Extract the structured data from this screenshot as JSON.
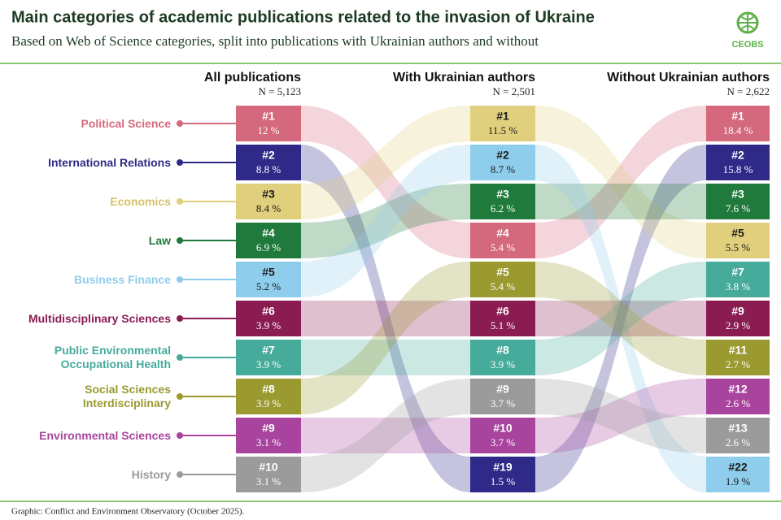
{
  "chart_data": {
    "type": "ribbon",
    "title": "Main categories of academic publications related to the invasion of Ukraine",
    "subtitle": "Based on Web of Science categories, split into publications with Ukrainian authors and without",
    "logo": "CEOBS",
    "source": "Graphic: Conflict and Environment Observatory (October 2025).",
    "categories": [
      "Political Science",
      "International Relations",
      "Economics",
      "Law",
      "Business Finance",
      "Multidisciplinary Sciences",
      "Public Environmental Occupational Health",
      "Social Sciences Interdisciplinary",
      "Environmental Sciences",
      "History"
    ],
    "colors": [
      "#d4687c",
      "#2f2a88",
      "#e0cf7c",
      "#1f7a3b",
      "#8fcdec",
      "#8a1c52",
      "#46ab9a",
      "#9a9a30",
      "#a8449d",
      "#9b9b9b"
    ],
    "columns": [
      {
        "title": "All publications",
        "n_label": "N = 5,123",
        "ranks": [
          1,
          2,
          3,
          4,
          5,
          6,
          7,
          8,
          9,
          10
        ],
        "rank_labels": [
          "#1",
          "#2",
          "#3",
          "#4",
          "#5",
          "#6",
          "#7",
          "#8",
          "#9",
          "#10"
        ],
        "values": [
          12,
          8.8,
          8.4,
          6.9,
          5.2,
          3.9,
          3.9,
          3.9,
          3.1,
          3.1
        ],
        "value_labels": [
          "12 %",
          "8.8 %",
          "8.4 %",
          "6.9 %",
          "5.2 %",
          "3.9 %",
          "3.9 %",
          "3.9 %",
          "3.1 %",
          "3.1 %"
        ]
      },
      {
        "title": "With Ukrainian authors",
        "n_label": "N = 2,501",
        "ranks": [
          4,
          19,
          1,
          3,
          2,
          6,
          8,
          5,
          10,
          9
        ],
        "rank_labels": [
          "#4",
          "#19",
          "#1",
          "#3",
          "#2",
          "#6",
          "#8",
          "#5",
          "#10",
          "#9"
        ],
        "values": [
          5.4,
          1.5,
          11.5,
          6.2,
          8.7,
          5.1,
          3.9,
          5.4,
          3.7,
          3.7
        ],
        "value_labels": [
          "5.4 %",
          "1.5 %",
          "11.5 %",
          "6.2 %",
          "8.7 %",
          "5.1 %",
          "3.9 %",
          "5.4 %",
          "3.7 %",
          "3.7 %"
        ]
      },
      {
        "title": "Without Ukrainian authors",
        "n_label": "N = 2,622",
        "ranks": [
          1,
          2,
          5,
          3,
          22,
          9,
          7,
          11,
          12,
          13
        ],
        "rank_labels": [
          "#1",
          "#2",
          "#5",
          "#3",
          "#22",
          "#9",
          "#7",
          "#11",
          "#12",
          "#13"
        ],
        "values": [
          18.4,
          15.8,
          5.5,
          7.6,
          1.9,
          2.9,
          3.8,
          2.7,
          2.6,
          2.6
        ],
        "value_labels": [
          "18.4 %",
          "15.8 %",
          "5.5 %",
          "7.6 %",
          "1.9 %",
          "2.9 %",
          "3.8 %",
          "2.7 %",
          "2.6 %",
          "2.6 %"
        ]
      }
    ]
  }
}
